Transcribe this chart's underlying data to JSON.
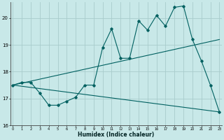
{
  "xlabel": "Humidex (Indice chaleur)",
  "bg_color": "#c8e8e8",
  "grid_color": "#a8cccc",
  "line_color": "#006060",
  "xlim": [
    -0.3,
    23.3
  ],
  "ylim": [
    16,
    20.6
  ],
  "yticks": [
    16,
    17,
    18,
    19,
    20
  ],
  "xticks": [
    0,
    1,
    2,
    3,
    4,
    5,
    6,
    7,
    8,
    9,
    10,
    11,
    12,
    13,
    14,
    15,
    16,
    17,
    18,
    19,
    20,
    21,
    22,
    23
  ],
  "zigzag_x": [
    0,
    1,
    2,
    3,
    4,
    5,
    6,
    7,
    8,
    9,
    10,
    11,
    12,
    13,
    14,
    15,
    16,
    17,
    18,
    19,
    20,
    21,
    22,
    23
  ],
  "zigzag_y": [
    17.5,
    17.6,
    17.6,
    17.2,
    16.75,
    16.75,
    16.9,
    17.05,
    17.5,
    17.5,
    18.9,
    19.6,
    18.5,
    18.5,
    19.9,
    19.55,
    20.1,
    19.7,
    20.4,
    20.45,
    19.2,
    18.4,
    17.5,
    16.5
  ],
  "upper_trend_x": [
    0,
    23
  ],
  "upper_trend_y": [
    17.5,
    19.2
  ],
  "lower_trend_x": [
    0,
    23
  ],
  "lower_trend_y": [
    17.5,
    16.5
  ]
}
